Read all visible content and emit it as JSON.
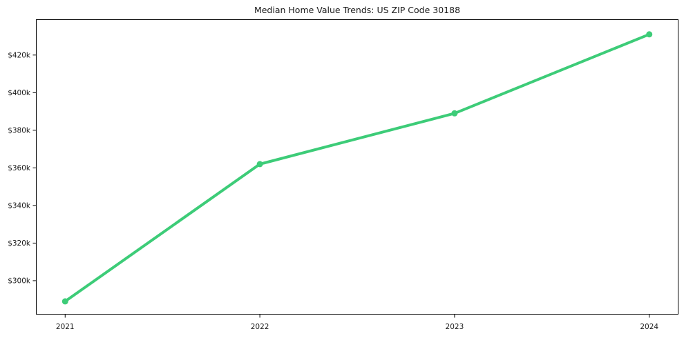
{
  "figure": {
    "background": "#ffffff"
  },
  "chart_data": {
    "type": "line",
    "title": "Median Home Value Trends: US ZIP Code 30188",
    "x": [
      2021,
      2022,
      2023,
      2024
    ],
    "x_tick_labels": [
      "2021",
      "2022",
      "2023",
      "2024"
    ],
    "series": [
      {
        "name": "median-home-value-usd",
        "values": [
          289000,
          362000,
          389000,
          431000
        ],
        "color": "#3dcc78",
        "marker": "circle",
        "marker_radius": 4.5,
        "line_width": 4
      }
    ],
    "y_ticks": [
      {
        "value": 300000,
        "label": "$300k"
      },
      {
        "value": 320000,
        "label": "$320k"
      },
      {
        "value": 340000,
        "label": "$340k"
      },
      {
        "value": 360000,
        "label": "$360k"
      },
      {
        "value": 380000,
        "label": "$380k"
      },
      {
        "value": 400000,
        "label": "$400k"
      },
      {
        "value": 420000,
        "label": "$420k"
      }
    ],
    "xlabel": "",
    "ylabel": "",
    "xlim": [
      2020.85,
      2024.15
    ],
    "ylim": [
      282000,
      439000
    ],
    "grid": false,
    "legend": "none",
    "axis_color": "#000000",
    "text_color": "#1a1a1a"
  }
}
